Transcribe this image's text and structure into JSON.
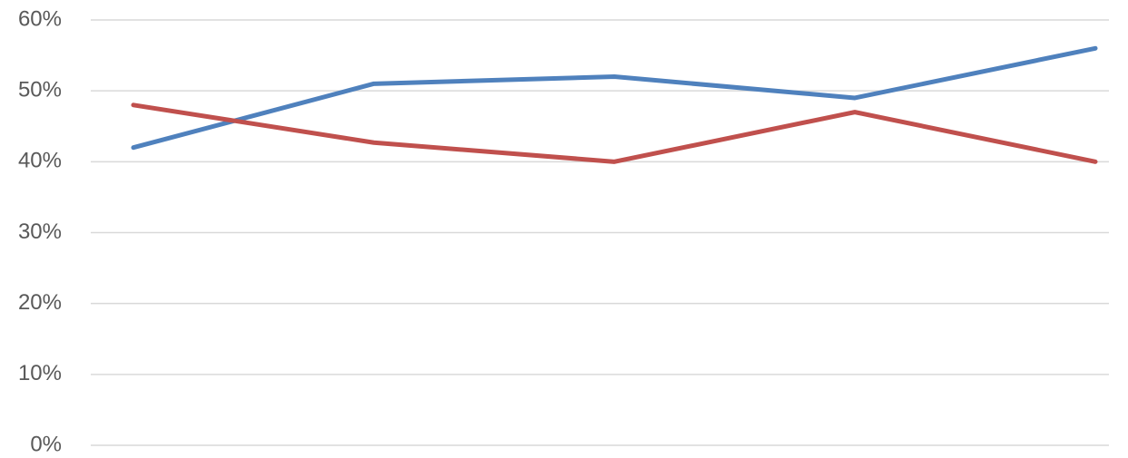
{
  "chart_data": {
    "type": "line",
    "categories": [
      null,
      null,
      null,
      null,
      null
    ],
    "series": [
      {
        "color": "#4f81bd",
        "values": [
          42,
          51,
          52,
          49,
          56
        ]
      },
      {
        "color": "#c0504d",
        "values": [
          48,
          42.7,
          40,
          47,
          40
        ]
      }
    ],
    "ylim": [
      0,
      60
    ],
    "yticks": [
      {
        "value": 0,
        "label": "0%"
      },
      {
        "value": 10,
        "label": "10%"
      },
      {
        "value": 20,
        "label": "20%"
      },
      {
        "value": 30,
        "label": "30%"
      },
      {
        "value": 40,
        "label": "40%"
      },
      {
        "value": 50,
        "label": "50%"
      },
      {
        "value": 60,
        "label": "60%"
      }
    ],
    "grid": true
  }
}
